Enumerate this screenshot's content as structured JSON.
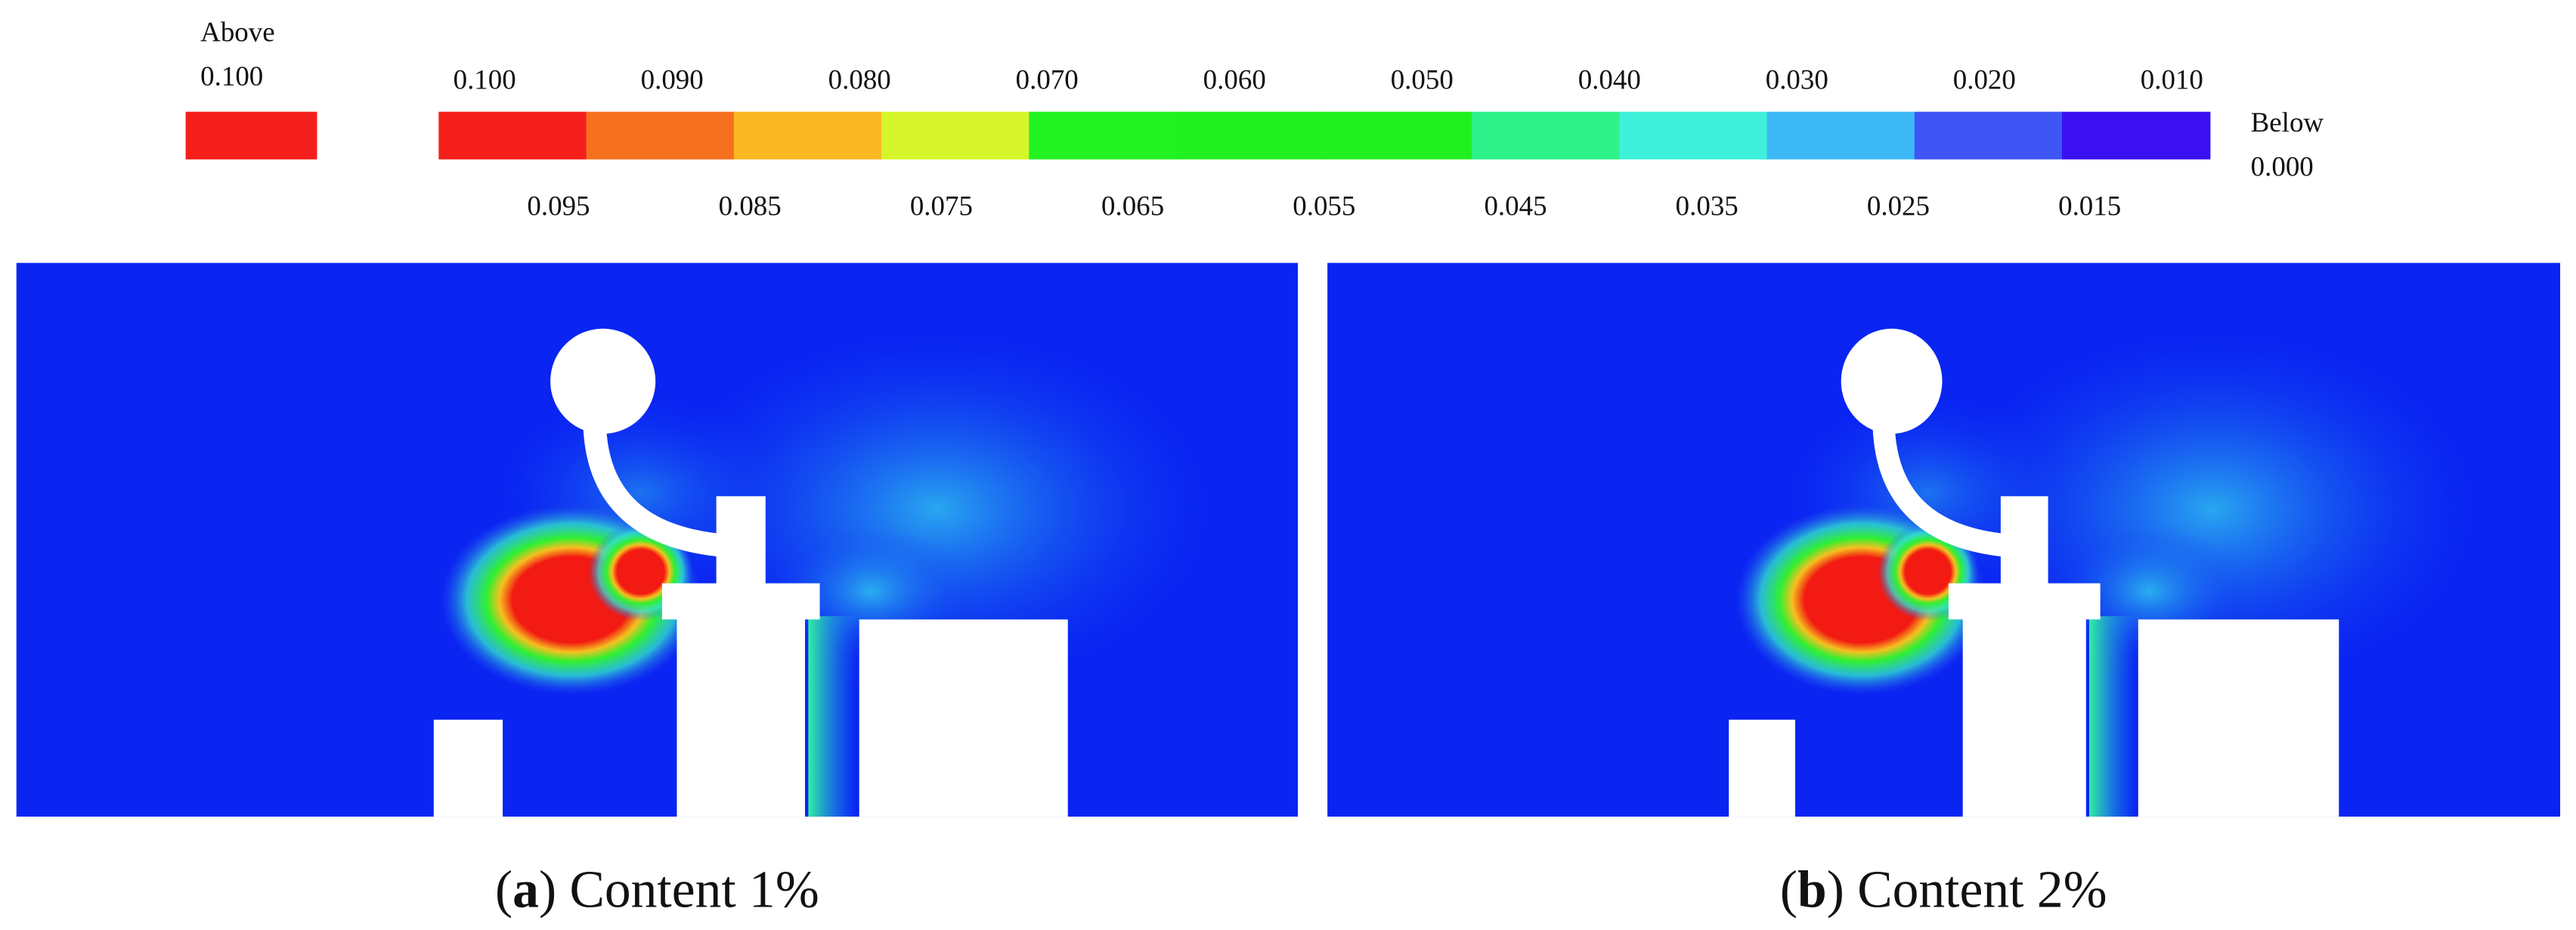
{
  "legend": {
    "above_label": "Above",
    "above_value": "0.100",
    "above_color": "#f5201c",
    "below_label": "Below",
    "below_value": "0.000",
    "top_labels": [
      "0.100",
      "0.090",
      "0.080",
      "0.070",
      "0.060",
      "0.050",
      "0.040",
      "0.030",
      "0.020",
      "0.010"
    ],
    "bottom_labels": [
      "0.095",
      "0.085",
      "0.075",
      "0.065",
      "0.055",
      "0.045",
      "0.035",
      "0.025",
      "0.015"
    ],
    "colors": [
      "#f5201c",
      "#f6701e",
      "#f9b823",
      "#d6f52a",
      "#22f222",
      "#20f020",
      "#20f020",
      "#2ef28a",
      "#3ff1da",
      "#3db8f6",
      "#3f55f5",
      "#3a10f2"
    ]
  },
  "panels": [
    {
      "caption_parts": [
        "(",
        "a",
        ") Content 1%"
      ]
    },
    {
      "caption_parts": [
        "(",
        "b",
        ") Content 2%"
      ]
    }
  ]
}
